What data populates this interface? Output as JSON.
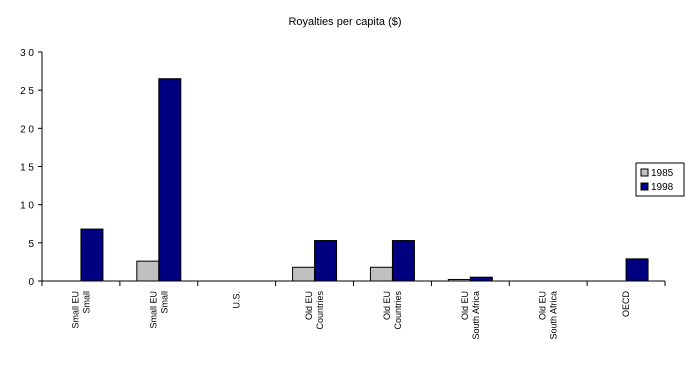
{
  "chart_data": {
    "type": "bar",
    "title": "Royalties per capita ($)",
    "xlabel": "",
    "ylabel": "",
    "ylim": [
      0,
      30
    ],
    "yticks": [
      "3 0",
      "2 5",
      "2 0",
      "1 5",
      "1 0",
      "5",
      "0"
    ],
    "grid": false,
    "legend_position": "right",
    "categories": [
      [
        "Small EU",
        "Small"
      ],
      [
        "Small EU",
        "Small"
      ],
      [
        "U.S."
      ],
      [
        "Old EU",
        "Countries"
      ],
      [
        "Old EU",
        "Countries"
      ],
      [
        "Old EU",
        "South Africa"
      ],
      [
        "Old EU",
        "South Africa"
      ],
      [
        "OECD"
      ]
    ],
    "series": [
      {
        "name": "1985",
        "color": "#c0c0c0",
        "values": [
          0,
          2.6,
          0,
          1.8,
          1.8,
          0.2,
          0,
          0
        ]
      },
      {
        "name": "1998",
        "color": "#000080",
        "values": [
          6.8,
          26.5,
          0,
          5.3,
          5.3,
          0.5,
          0,
          2.9
        ]
      }
    ]
  }
}
